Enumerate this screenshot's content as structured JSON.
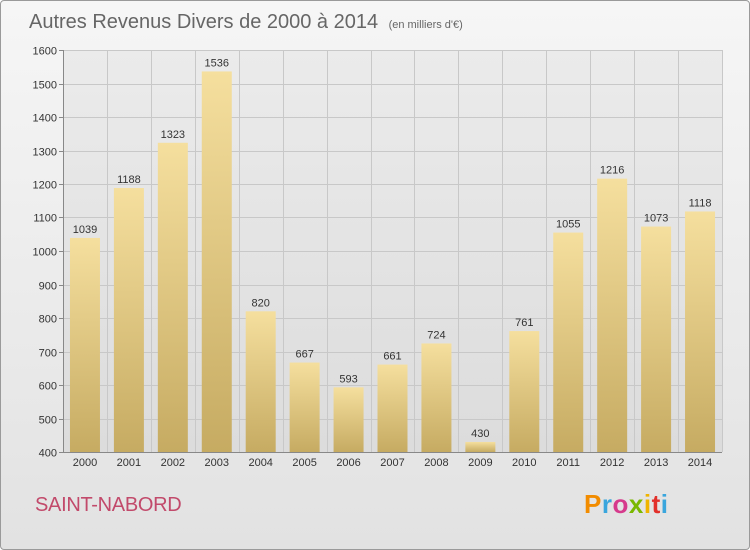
{
  "header": {
    "title": "Autres Revenus Divers de 2000 à 2014",
    "subtitle": "(en milliers d'€)"
  },
  "footer": {
    "commune": "SAINT-NABORD",
    "logo_text": "Proxiti",
    "logo_colors": [
      "#f28c00",
      "#3aa6dd",
      "#d63a8c",
      "#7ab800",
      "#f0b400",
      "#e2302b",
      "#3aa6dd"
    ]
  },
  "colors": {
    "bar_top": "#f5df9e",
    "bar_bottom": "#c6ab62",
    "grid": "#c8c8c8",
    "axis": "#888888"
  },
  "chart_data": {
    "type": "bar",
    "title": "Autres Revenus Divers de 2000 à 2014",
    "subtitle": "(en milliers d'€)",
    "xlabel": "",
    "ylabel": "",
    "categories": [
      "2000",
      "2001",
      "2002",
      "2003",
      "2004",
      "2005",
      "2006",
      "2007",
      "2008",
      "2009",
      "2010",
      "2011",
      "2012",
      "2013",
      "2014"
    ],
    "values": [
      1039,
      1188,
      1323,
      1536,
      820,
      667,
      593,
      661,
      724,
      430,
      761,
      1055,
      1216,
      1073,
      1118
    ],
    "ylim": [
      400,
      1600
    ],
    "yticks": [
      400,
      500,
      600,
      700,
      800,
      900,
      1000,
      1100,
      1200,
      1300,
      1400,
      1500,
      1600
    ],
    "grid": true,
    "data_labels": true
  }
}
